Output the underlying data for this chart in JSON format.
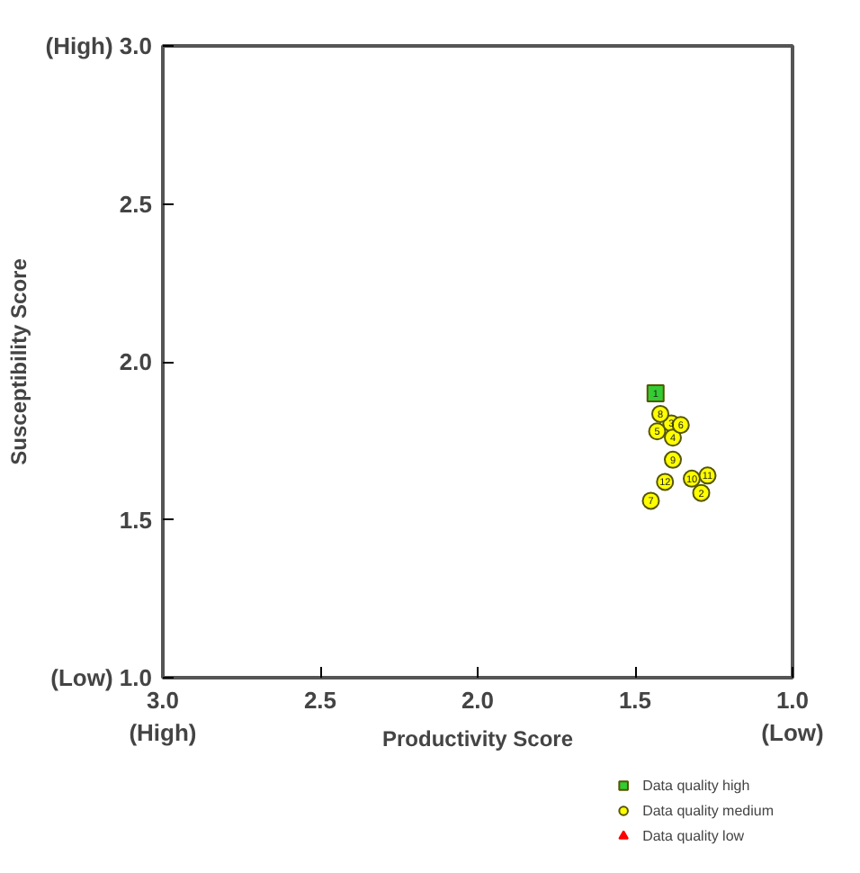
{
  "chart_data": {
    "type": "scatter",
    "xlabel": "Productivity Score",
    "ylabel": "Susceptibility Score",
    "xlim": [
      3.0,
      1.0
    ],
    "ylim": [
      1.0,
      3.0
    ],
    "xticks": [
      {
        "value": 3.0,
        "label": "3.0\n(High)"
      },
      {
        "value": 2.5,
        "label": "2.5"
      },
      {
        "value": 2.0,
        "label": "2.0"
      },
      {
        "value": 1.5,
        "label": "1.5"
      },
      {
        "value": 1.0,
        "label": "1.0\n(Low)"
      }
    ],
    "yticks": [
      {
        "value": 1.0,
        "label": "(Low) 1.0"
      },
      {
        "value": 1.5,
        "label": "1.5"
      },
      {
        "value": 2.0,
        "label": "2.0"
      },
      {
        "value": 2.5,
        "label": "2.5"
      },
      {
        "value": 3.0,
        "label": "(High) 3.0"
      }
    ],
    "annotations": [
      {
        "text": "1",
        "x": 1.435,
        "y": 1.9
      },
      {
        "text": "2",
        "x": 1.29,
        "y": 1.585
      },
      {
        "text": "3",
        "x": 1.385,
        "y": 1.805
      },
      {
        "text": "4",
        "x": 1.38,
        "y": 1.76
      },
      {
        "text": "5",
        "x": 1.43,
        "y": 1.78
      },
      {
        "text": "6",
        "x": 1.355,
        "y": 1.8
      },
      {
        "text": "7",
        "x": 1.45,
        "y": 1.56
      },
      {
        "text": "8",
        "x": 1.42,
        "y": 1.835
      },
      {
        "text": "9",
        "x": 1.38,
        "y": 1.69
      },
      {
        "text": "10",
        "x": 1.32,
        "y": 1.63
      },
      {
        "text": "11",
        "x": 1.27,
        "y": 1.64
      },
      {
        "text": "12",
        "x": 1.405,
        "y": 1.62
      }
    ],
    "legend": "bottom right",
    "grid": false,
    "series": [
      {
        "name": "Data quality high",
        "color": "#33cc33",
        "marker": "square",
        "x": [
          1.435
        ],
        "values": [
          1.9
        ]
      },
      {
        "name": "Data quality medium",
        "color": "#ffff00",
        "marker": "circle",
        "x": [
          1.29,
          1.385,
          1.38,
          1.43,
          1.355,
          1.45,
          1.42,
          1.38,
          1.32,
          1.27,
          1.405
        ],
        "values": [
          1.585,
          1.805,
          1.76,
          1.78,
          1.8,
          1.56,
          1.835,
          1.69,
          1.63,
          1.64,
          1.62
        ]
      },
      {
        "name": "Data quality low",
        "color": "#ff0000",
        "marker": "triangle"
      }
    ]
  }
}
